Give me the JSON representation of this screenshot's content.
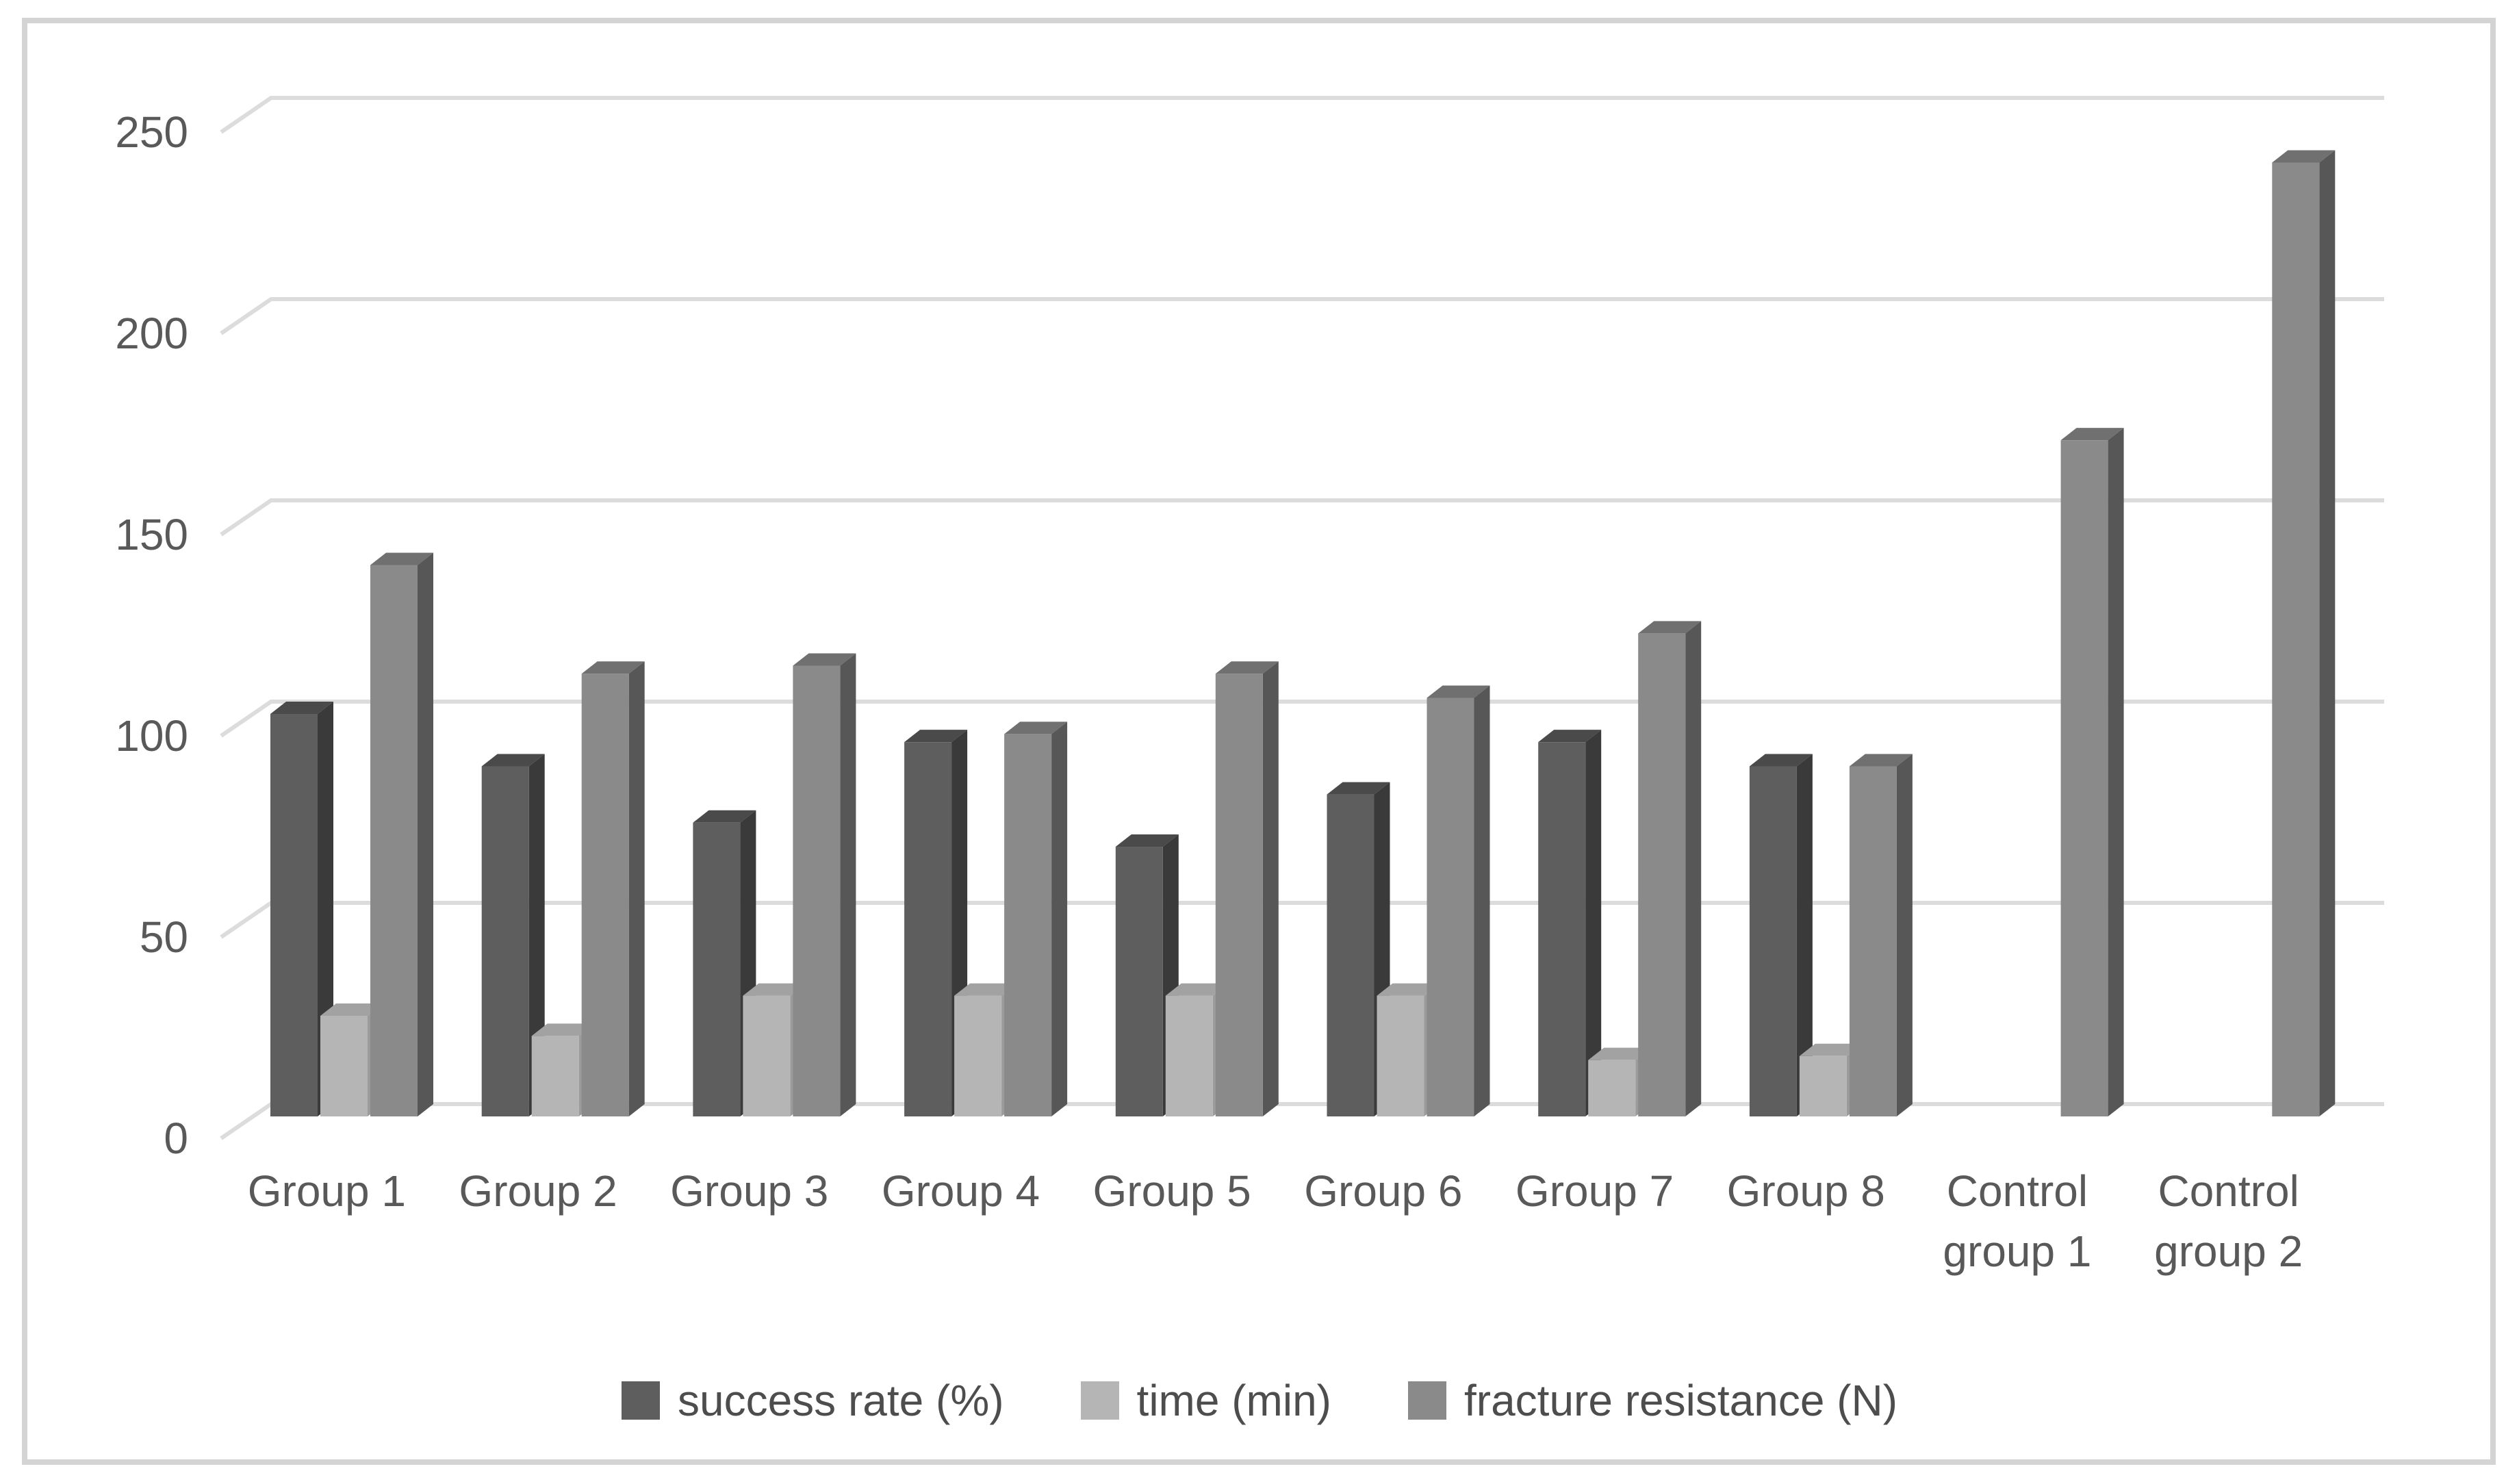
{
  "chart_data": {
    "type": "bar",
    "style": "3d-clustered-column",
    "title": "",
    "xlabel": "",
    "ylabel": "",
    "categories": [
      "Group 1",
      "Group 2",
      "Group 3",
      "Group 4",
      "Group 5",
      "Group 6",
      "Group 7",
      "Group 8",
      "Control group 1",
      "Control group 2"
    ],
    "series": [
      {
        "name": "success rate (%)",
        "values": [
          100,
          87,
          73,
          93,
          67,
          80,
          93,
          87,
          null,
          null
        ],
        "color": {
          "front": "#5E5E5E",
          "side": "#3A3A3A",
          "top": "#4A4A4A"
        }
      },
      {
        "name": "time (min)",
        "values": [
          25,
          20,
          30,
          30,
          30,
          30,
          14,
          15,
          null,
          null
        ],
        "color": {
          "front": "#B5B5B5",
          "side": "#9B9B9B",
          "top": "#A2A2A2"
        }
      },
      {
        "name": "fracture resistance (N)",
        "values": [
          137,
          110,
          112,
          95,
          110,
          104,
          120,
          87,
          168,
          237
        ],
        "color": {
          "front": "#8A8A8A",
          "side": "#575757",
          "top": "#707070"
        }
      }
    ],
    "ylim": [
      0,
      250
    ],
    "yticks": [
      0,
      50,
      100,
      150,
      200,
      250
    ],
    "grid": true,
    "legend_position": "bottom"
  },
  "frame": {
    "background": "#FFFFFF",
    "border_color": "#D4D4D4",
    "gridline_color": "#DCDCDC",
    "tick_label_color": "#595959",
    "category_label_color": "#595959",
    "legend_text_color": "#4D4D4D"
  }
}
